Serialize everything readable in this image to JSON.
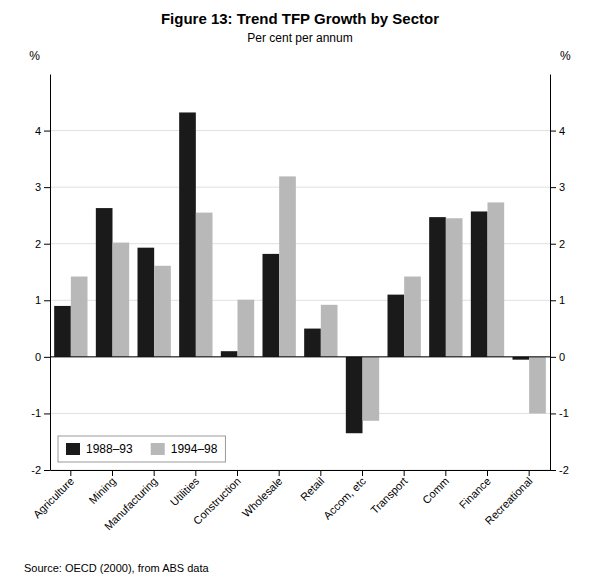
{
  "chart_data": {
    "type": "bar",
    "title": "Figure 13: Trend TFP Growth by Sector",
    "subtitle": "Per cent per annum",
    "annotations": [
      "Source: OECD (2000), from ABS data"
    ],
    "ylabel": "%",
    "y2label": "%",
    "categories": [
      "Agriculture",
      "Mining",
      "Manufacturing",
      "Utilities",
      "Construction",
      "Wholesale",
      "Retail",
      "Accom, etc",
      "Transport",
      "Comm",
      "Finance",
      "Recreational"
    ],
    "series": [
      {
        "name": "1988–93",
        "color": "#1a1a1a",
        "values": [
          0.9,
          2.63,
          1.93,
          4.32,
          0.1,
          1.82,
          0.5,
          -1.35,
          1.1,
          2.47,
          2.57,
          -0.05
        ]
      },
      {
        "name": "1994–98",
        "color": "#b8b8b8",
        "values": [
          1.42,
          2.02,
          1.61,
          2.55,
          1.01,
          3.19,
          0.92,
          -1.13,
          1.42,
          2.45,
          2.73,
          -1.0
        ]
      }
    ],
    "ylim": [
      -2,
      5
    ],
    "yticks": [
      -2,
      -1,
      0,
      1,
      2,
      3,
      4
    ],
    "y2lim": [
      -2,
      5
    ],
    "y2ticks": [
      -2,
      -1,
      0,
      1,
      2,
      3,
      4
    ],
    "grid": true,
    "legend": "lower left"
  }
}
